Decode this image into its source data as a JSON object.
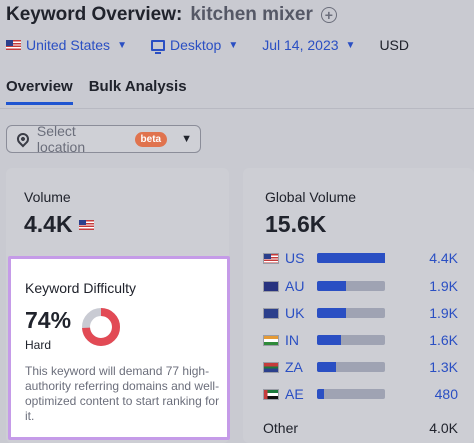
{
  "header": {
    "title": "Keyword Overview:",
    "keyword": "kitchen mixer",
    "country": "United States",
    "device": "Desktop",
    "date": "Jul 14, 2023",
    "currency": "USD"
  },
  "tabs": [
    {
      "label": "Overview",
      "active": true
    },
    {
      "label": "Bulk Analysis",
      "active": false
    }
  ],
  "location": {
    "placeholder": "Select location",
    "badge": "beta"
  },
  "volume": {
    "label": "Volume",
    "value": "4.4K"
  },
  "keyword_difficulty": {
    "label": "Keyword Difficulty",
    "value": "74%",
    "percent": 74,
    "level": "Hard",
    "description": "This keyword will demand 77 high-authority referring domains and well-optimized content to start ranking for it.",
    "colors": {
      "fill": "#e24a55",
      "track": "#c9cbd3"
    }
  },
  "global_volume": {
    "label": "Global Volume",
    "value": "15.6K",
    "rows": [
      {
        "code": "US",
        "value": "4.4K",
        "share": 0.28
      },
      {
        "code": "AU",
        "value": "1.9K",
        "share": 0.12
      },
      {
        "code": "UK",
        "value": "1.9K",
        "share": 0.12
      },
      {
        "code": "IN",
        "value": "1.6K",
        "share": 0.1
      },
      {
        "code": "ZA",
        "value": "1.3K",
        "share": 0.08
      },
      {
        "code": "AE",
        "value": "480",
        "share": 0.03
      }
    ],
    "other": {
      "code": "Other",
      "value": "4.0K"
    }
  },
  "colors": {
    "accent": "#2a4fc3",
    "highlight_border": "#c59be8",
    "beta": "#e0734e"
  }
}
